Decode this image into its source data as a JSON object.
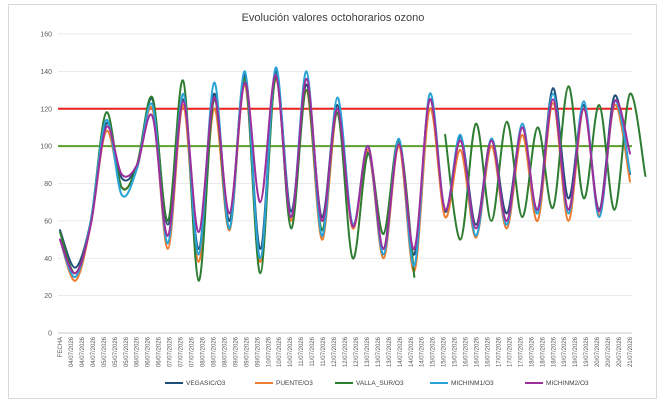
{
  "chart_data": {
    "type": "line",
    "title": "Evolución valores octohorarios ozono",
    "ylim": [
      0,
      160
    ],
    "yticks": [
      0,
      20,
      40,
      60,
      80,
      100,
      120,
      140,
      160
    ],
    "x_tick_labels": [
      "FECHA",
      "04/07/2026",
      "04/07/2026",
      "04/07/2026",
      "05/07/2026",
      "05/07/2026",
      "05/07/2026",
      "06/07/2026",
      "06/07/2026",
      "06/07/2026",
      "07/07/2026",
      "07/07/2026",
      "07/07/2026",
      "08/07/2026",
      "08/07/2026",
      "08/07/2026",
      "09/07/2026",
      "09/07/2026",
      "09/07/2026",
      "10/07/2026",
      "10/07/2026",
      "10/07/2026",
      "11/07/2026",
      "11/07/2026",
      "11/07/2026",
      "12/07/2026",
      "12/07/2026",
      "12/07/2026",
      "13/07/2026",
      "13/07/2026",
      "13/07/2026",
      "14/07/2026",
      "14/07/2026",
      "14/07/2026",
      "15/07/2026",
      "15/07/2026",
      "15/07/2026",
      "16/07/2026",
      "16/07/2026",
      "16/07/2026",
      "17/07/2026",
      "17/07/2026",
      "17/07/2026",
      "18/07/2026",
      "18/07/2026",
      "18/07/2026",
      "19/07/2026",
      "19/07/2026",
      "19/07/2026",
      "20/07/2026",
      "20/07/2026",
      "20/07/2026",
      "21/07/2026"
    ],
    "reference_lines": [
      {
        "value": 120,
        "color": "#e8211b"
      },
      {
        "value": 100,
        "color": "#5aa02c"
      }
    ],
    "series": [
      {
        "name": "VEGASIC/O3",
        "color": "#1f4e79",
        "points": [
          [
            0,
            55
          ],
          [
            1,
            35
          ],
          [
            2,
            60
          ],
          [
            3,
            112
          ],
          [
            4,
            83
          ],
          [
            5,
            90
          ],
          [
            6,
            125
          ],
          [
            7,
            58
          ],
          [
            8,
            125
          ],
          [
            9,
            45
          ],
          [
            10,
            128
          ],
          [
            11,
            60
          ],
          [
            12,
            138
          ],
          [
            13,
            45
          ],
          [
            14,
            140
          ],
          [
            15,
            65
          ],
          [
            16,
            133
          ],
          [
            17,
            62
          ],
          [
            18,
            122
          ],
          [
            19,
            58
          ],
          [
            20,
            97
          ],
          [
            21,
            45
          ],
          [
            22,
            103
          ],
          [
            23,
            42
          ],
          [
            24,
            125
          ],
          [
            25,
            65
          ],
          [
            26,
            105
          ],
          [
            27,
            58
          ],
          [
            28,
            104
          ],
          [
            29,
            64
          ],
          [
            30,
            110
          ],
          [
            31,
            66
          ],
          [
            32,
            131
          ],
          [
            33,
            72
          ],
          [
            34,
            122
          ],
          [
            35,
            66
          ],
          [
            36,
            127
          ],
          [
            37,
            85
          ]
        ]
      },
      {
        "name": "PUENTE/O3",
        "color": "#ed7d31",
        "points": [
          [
            0,
            50
          ],
          [
            1,
            28
          ],
          [
            2,
            58
          ],
          [
            3,
            108
          ],
          [
            4,
            78
          ],
          [
            5,
            88
          ],
          [
            6,
            120
          ],
          [
            7,
            45
          ],
          [
            8,
            122
          ],
          [
            9,
            38
          ],
          [
            10,
            120
          ],
          [
            11,
            55
          ],
          [
            12,
            133
          ],
          [
            13,
            38
          ],
          [
            14,
            136
          ],
          [
            15,
            60
          ],
          [
            16,
            130
          ],
          [
            17,
            50
          ],
          [
            18,
            118
          ],
          [
            19,
            56
          ],
          [
            20,
            98
          ],
          [
            21,
            40
          ],
          [
            22,
            100
          ],
          [
            23,
            33
          ],
          [
            24,
            120
          ],
          [
            25,
            62
          ],
          [
            26,
            98
          ],
          [
            27,
            51
          ],
          [
            28,
            100
          ],
          [
            29,
            56
          ],
          [
            30,
            106
          ],
          [
            31,
            60
          ],
          [
            32,
            123
          ],
          [
            33,
            60
          ],
          [
            34,
            120
          ],
          [
            35,
            63
          ],
          [
            36,
            122
          ],
          [
            37,
            81
          ]
        ]
      },
      {
        "name": "VALLA_SUR/O3",
        "color": "#2e7d32",
        "segments": [
          [
            [
              0,
              54
            ],
            [
              1,
              32
            ],
            [
              2,
              60
            ],
            [
              3,
              118
            ],
            [
              4,
              78
            ],
            [
              5,
              90
            ],
            [
              6,
              126
            ],
            [
              7,
              60
            ],
            [
              8,
              135
            ],
            [
              9,
              28
            ],
            [
              10,
              125
            ],
            [
              11,
              56
            ],
            [
              12,
              136
            ],
            [
              13,
              32
            ],
            [
              14,
              137
            ],
            [
              15,
              56
            ],
            [
              16,
              130
            ],
            [
              17,
              55
            ],
            [
              18,
              118
            ],
            [
              19,
              40
            ],
            [
              20,
              96
            ],
            [
              21,
              53
            ],
            [
              22,
              103
            ],
            [
              23,
              30
            ]
          ],
          [
            [
              25,
              106
            ],
            [
              26,
              50
            ],
            [
              27,
              112
            ],
            [
              28,
              60
            ],
            [
              29,
              113
            ],
            [
              30,
              62
            ],
            [
              31,
              110
            ],
            [
              32,
              67
            ],
            [
              33,
              132
            ],
            [
              34,
              72
            ],
            [
              35,
              122
            ],
            [
              36,
              66
            ],
            [
              37,
              128
            ],
            [
              38,
              84
            ]
          ]
        ]
      },
      {
        "name": "MICHINM1/O3",
        "color": "#2aa3d6",
        "points": [
          [
            0,
            50
          ],
          [
            1,
            30
          ],
          [
            2,
            60
          ],
          [
            3,
            114
          ],
          [
            4,
            74
          ],
          [
            5,
            88
          ],
          [
            6,
            122
          ],
          [
            7,
            48
          ],
          [
            8,
            128
          ],
          [
            9,
            42
          ],
          [
            10,
            134
          ],
          [
            11,
            56
          ],
          [
            12,
            140
          ],
          [
            13,
            40
          ],
          [
            14,
            142
          ],
          [
            15,
            62
          ],
          [
            16,
            140
          ],
          [
            17,
            52
          ],
          [
            18,
            126
          ],
          [
            19,
            58
          ],
          [
            20,
            100
          ],
          [
            21,
            42
          ],
          [
            22,
            104
          ],
          [
            23,
            36
          ],
          [
            24,
            128
          ],
          [
            25,
            66
          ],
          [
            26,
            106
          ],
          [
            27,
            52
          ],
          [
            28,
            104
          ],
          [
            29,
            58
          ],
          [
            30,
            112
          ],
          [
            31,
            64
          ],
          [
            32,
            128
          ],
          [
            33,
            64
          ],
          [
            34,
            124
          ],
          [
            35,
            62
          ],
          [
            36,
            124
          ],
          [
            37,
            86
          ]
        ]
      },
      {
        "name": "MICHINM2/O3",
        "color": "#9c2f9c",
        "points": [
          [
            0,
            50
          ],
          [
            1,
            32
          ],
          [
            2,
            58
          ],
          [
            3,
            110
          ],
          [
            4,
            85
          ],
          [
            5,
            90
          ],
          [
            6,
            116
          ],
          [
            7,
            52
          ],
          [
            8,
            124
          ],
          [
            9,
            54
          ],
          [
            10,
            126
          ],
          [
            11,
            64
          ],
          [
            12,
            134
          ],
          [
            13,
            70
          ],
          [
            14,
            138
          ],
          [
            15,
            62
          ],
          [
            16,
            136
          ],
          [
            17,
            60
          ],
          [
            18,
            120
          ],
          [
            19,
            57
          ],
          [
            20,
            100
          ],
          [
            21,
            45
          ],
          [
            22,
            101
          ],
          [
            23,
            45
          ],
          [
            24,
            125
          ],
          [
            25,
            66
          ],
          [
            26,
            103
          ],
          [
            27,
            56
          ],
          [
            28,
            103
          ],
          [
            29,
            60
          ],
          [
            30,
            110
          ],
          [
            31,
            66
          ],
          [
            32,
            125
          ],
          [
            33,
            66
          ],
          [
            34,
            120
          ],
          [
            35,
            65
          ],
          [
            36,
            124
          ],
          [
            37,
            96
          ]
        ]
      }
    ],
    "legend_position": "bottom",
    "grid": true
  }
}
